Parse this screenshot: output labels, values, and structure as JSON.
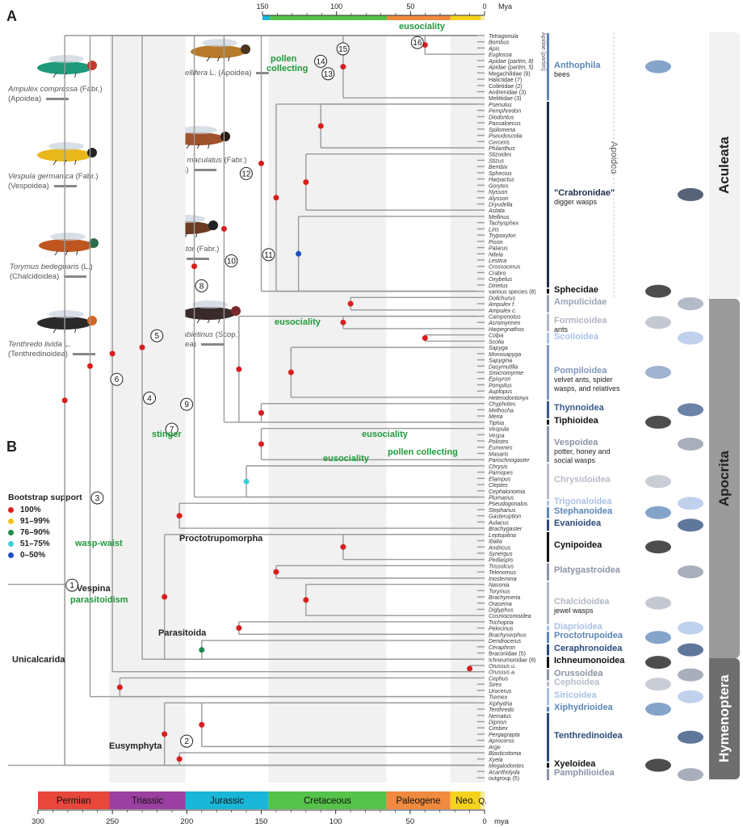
{
  "panels": {
    "a": "A",
    "b": "B"
  },
  "top_axis": {
    "unit": "Mya",
    "ticks": [
      "150",
      "100",
      "50",
      "0"
    ]
  },
  "bottom_axis": {
    "unit": "mya",
    "ticks": [
      "300",
      "250",
      "200",
      "150",
      "100",
      "50",
      "0"
    ]
  },
  "periods": [
    {
      "name": "Permian",
      "color": "#e8473b"
    },
    {
      "name": "Triassic",
      "color": "#9b3fa0"
    },
    {
      "name": "Jurassic",
      "color": "#19b6d8"
    },
    {
      "name": "Cretaceous",
      "color": "#55c24a"
    },
    {
      "name": "Paleogene",
      "color": "#f08a3e"
    },
    {
      "name": "Neo.",
      "color": "#f5d21c"
    },
    {
      "name": "Q.",
      "color": "#f6e99a"
    }
  ],
  "photos": [
    {
      "species": "Ampulex compressa",
      "author": "(Fabr.)",
      "family": "(Apoidea)",
      "colors": [
        "#1e9a7a",
        "#c23a2a"
      ]
    },
    {
      "species": "Apis mellifera",
      "author": "L. (Apoidea)",
      "family": "",
      "colors": [
        "#b77b2b",
        "#4a3520"
      ]
    },
    {
      "species": "Vespula germanica",
      "author": "(Fabr.)",
      "family": "(Vespoidea)",
      "colors": [
        "#e8b81a",
        "#222222"
      ]
    },
    {
      "species": "Camponotus maculatus",
      "author": "(Fabr.)",
      "family": "(Formicoidea)",
      "colors": [
        "#a0522d",
        "#2a1a12"
      ]
    },
    {
      "species": "Torymus bedeguaris",
      "author": "(L.)",
      "family": "(Chalcidoidea)",
      "colors": [
        "#c0561f",
        "#2f6e4a"
      ]
    },
    {
      "species": "Stephanus serrator",
      "author": "(Fabr.)",
      "family": "(Stephanoidea)",
      "colors": [
        "#6b3b22",
        "#222222"
      ]
    },
    {
      "species": "Tenthredo livida",
      "author": "L.",
      "family": "(Tenthredinoidea)",
      "colors": [
        "#2a2a2a",
        "#d2641d"
      ]
    },
    {
      "species": "Orussus abietinus",
      "author": "(Scop.)",
      "family": "(Orussoidea)",
      "colors": [
        "#3a2a2a",
        "#7a2a2a"
      ]
    }
  ],
  "legend": {
    "title": "Bootstrap support",
    "items": [
      {
        "label": "100%",
        "color": "#d91e1e"
      },
      {
        "label": "91–99%",
        "color": "#f2c21b"
      },
      {
        "label": "76–90%",
        "color": "#1f8a4c"
      },
      {
        "label": "51–75%",
        "color": "#3fd0d6"
      },
      {
        "label": "0–50%",
        "color": "#1f4fbf"
      }
    ]
  },
  "annotations": {
    "eusociality_top": "eusociality",
    "pollen_collecting_1": "pollen",
    "pollen_collecting_2": "collecting",
    "eusociality_mid": "eusociality",
    "stinger": "stinger",
    "eusociality_vesp": "eusociality",
    "eusociality_vesp2": "eusociality",
    "pollen_collecting_vesp": "pollen collecting",
    "wasp_waist": "wasp-waist",
    "vespina": "Vespina",
    "parasitoidism": "parasitoidism",
    "unicalcarida": "Unicalcarida",
    "proctotrupomorpha": "Proctotrupomorpha",
    "parasitoida": "Parasitoida",
    "eusymphyta": "Eusymphyta"
  },
  "nodes": [
    "1",
    "2",
    "3",
    "4",
    "5",
    "6",
    "7",
    "8",
    "9",
    "10",
    "11",
    "12",
    "13",
    "14",
    "15",
    "16"
  ],
  "taxa": [
    "Tetragonula",
    "Bombus",
    "Apis",
    "Euglossa",
    "Apidae (partim, 8)",
    "Apidae (partim, 5)",
    "Megachilidae (9)",
    "Halictidae (7)",
    "Colletidae (2)",
    "Andrenidae (3)",
    "Melittidae (3)",
    "Psenulus",
    "Pemphredon",
    "Diodontus",
    "Passaloecus",
    "Spilomena",
    "Pseudoscolia",
    "Cerceris",
    "Philanthus",
    "Stizoides",
    "Stizus",
    "Bembix",
    "Sphecius",
    "Harpactus",
    "Gorytes",
    "Nysson",
    "Alysson",
    "Dryudella",
    "Astata",
    "Mellinus",
    "Tachysphex",
    "Liris",
    "Trypoxylon",
    "Pison",
    "Palarus",
    "Nitela",
    "Lestica",
    "Crossocerus",
    "Crabro",
    "Oxybelus",
    "Dinetus",
    "various species (8)",
    "Dolichurus",
    "Ampulex f.",
    "Ampulex c.",
    "Camponotus",
    "Acromyrmex",
    "Harpegnathos",
    "Colpa",
    "Scolia",
    "Sapyga",
    "Monosapyga",
    "Sapygina",
    "Dasymutilla",
    "Smicromyrme",
    "Episyron",
    "Pompilus",
    "Auplopus",
    "Heterodontonyx",
    "Chyphotes",
    "Methocha",
    "Meria",
    "Tiphia",
    "Vespula",
    "Vespa",
    "Polistes",
    "Eumenes",
    "Masaris",
    "Parischnogaster",
    "Chrysis",
    "Parnopes",
    "Elampus",
    "Cleptes",
    "Cephalonomia",
    "Plumarius",
    "Pseudogonalos",
    "Stephanus",
    "Gasteruption",
    "Aulacus",
    "Brachygaster",
    "Leptopilina",
    "Ibalia",
    "Andricus",
    "Synergus",
    "Pediaspis",
    "Trissolcus",
    "Telenomus",
    "Inostemma",
    "Nasonia",
    "Torymus",
    "Brachymeria",
    "Orasema",
    "Diglyphus",
    "Cosmocomoidea",
    "Trichopria",
    "Pelecinus",
    "Brachyserphus",
    "Dendrocerus",
    "Ceraphron",
    "Braconidae (5)",
    "Ichneumonidae (8)",
    "Orussus u.",
    "Orussus a.",
    "Cephus",
    "Sirex",
    "Urocerus",
    "Tremex",
    "Xiphydria",
    "Tenthredo",
    "Nematus",
    "Diprion",
    "Cimbex",
    "Pergagrapta",
    "Aproceros",
    "Arge",
    "Blasticotoma",
    "Xyela",
    "Megalodontes",
    "Acantholyda",
    "outgroup (5)"
  ],
  "apidae_label": "Apidae (partim)",
  "groups": [
    {
      "name": "Anthophila",
      "desc": "bees",
      "color": "#5b86b8"
    },
    {
      "name": "\"Crabronidae\"",
      "desc": "digger wasps",
      "color": "#1f2f4a"
    },
    {
      "name": "Sphecidae",
      "desc": "",
      "color": "#111111"
    },
    {
      "name": "Ampulicidae",
      "desc": "",
      "color": "#9aa3b5"
    },
    {
      "name": "Formicoidea",
      "desc": "ants",
      "color": "#b0b6c2"
    },
    {
      "name": "Scolioidea",
      "desc": "",
      "color": "#a9c1e6"
    },
    {
      "name": "Pompiloidea",
      "desc": "velvet ants, spider wasps, and relatives",
      "color": "#7f98bf"
    },
    {
      "name": "Thynnoidea",
      "desc": "",
      "color": "#3a5a8a"
    },
    {
      "name": "Tiphioidea",
      "desc": "",
      "color": "#111111"
    },
    {
      "name": "Vespoidea",
      "desc": "potter, honey and social wasps",
      "color": "#8c93a6"
    },
    {
      "name": "Chrysidoidea",
      "desc": "",
      "color": "#b7bcc7"
    },
    {
      "name": "Trigonaloidea",
      "desc": "",
      "color": "#a9c1e6"
    },
    {
      "name": "Stephanoidea",
      "desc": "",
      "color": "#5b86b8"
    },
    {
      "name": "Evanioidea",
      "desc": "",
      "color": "#2a4a7a"
    },
    {
      "name": "Cynipoidea",
      "desc": "",
      "color": "#111111"
    },
    {
      "name": "Platygastroidea",
      "desc": "",
      "color": "#8c93a6"
    },
    {
      "name": "Chalcidoidea",
      "desc": "jewel wasps",
      "color": "#b0b6c2"
    },
    {
      "name": "Diaprioidea",
      "desc": "",
      "color": "#a9c1e6"
    },
    {
      "name": "Proctotrupoidea",
      "desc": "",
      "color": "#5b86b8"
    },
    {
      "name": "Ceraphronoidea",
      "desc": "",
      "color": "#2a4a7a"
    },
    {
      "name": "Ichneumonoidea",
      "desc": "",
      "color": "#111111"
    },
    {
      "name": "Orussoidea",
      "desc": "",
      "color": "#8c93a6"
    },
    {
      "name": "Cephoidea",
      "desc": "",
      "color": "#b7bcc7"
    },
    {
      "name": "Siricoidea",
      "desc": "",
      "color": "#a9c1e6"
    },
    {
      "name": "Xiphydrioidea",
      "desc": "",
      "color": "#5b86b8"
    },
    {
      "name": "Tenthredinoidea",
      "desc": "",
      "color": "#2a4a7a"
    },
    {
      "name": "Xyeloidea",
      "desc": "",
      "color": "#111111"
    },
    {
      "name": "Pamphilioidea",
      "desc": "",
      "color": "#8c93a6"
    }
  ],
  "superfamily_label": "Apoidea",
  "side_tabs": [
    {
      "name": "Aculeata",
      "color": "#f2f2f2",
      "text_color": "#222222"
    },
    {
      "name": "Apocrita",
      "color": "#9b9b9b",
      "text_color": "#222222"
    },
    {
      "name": "Hymenoptera",
      "color": "#6e6e6e",
      "text_color": "#ffffff"
    }
  ]
}
